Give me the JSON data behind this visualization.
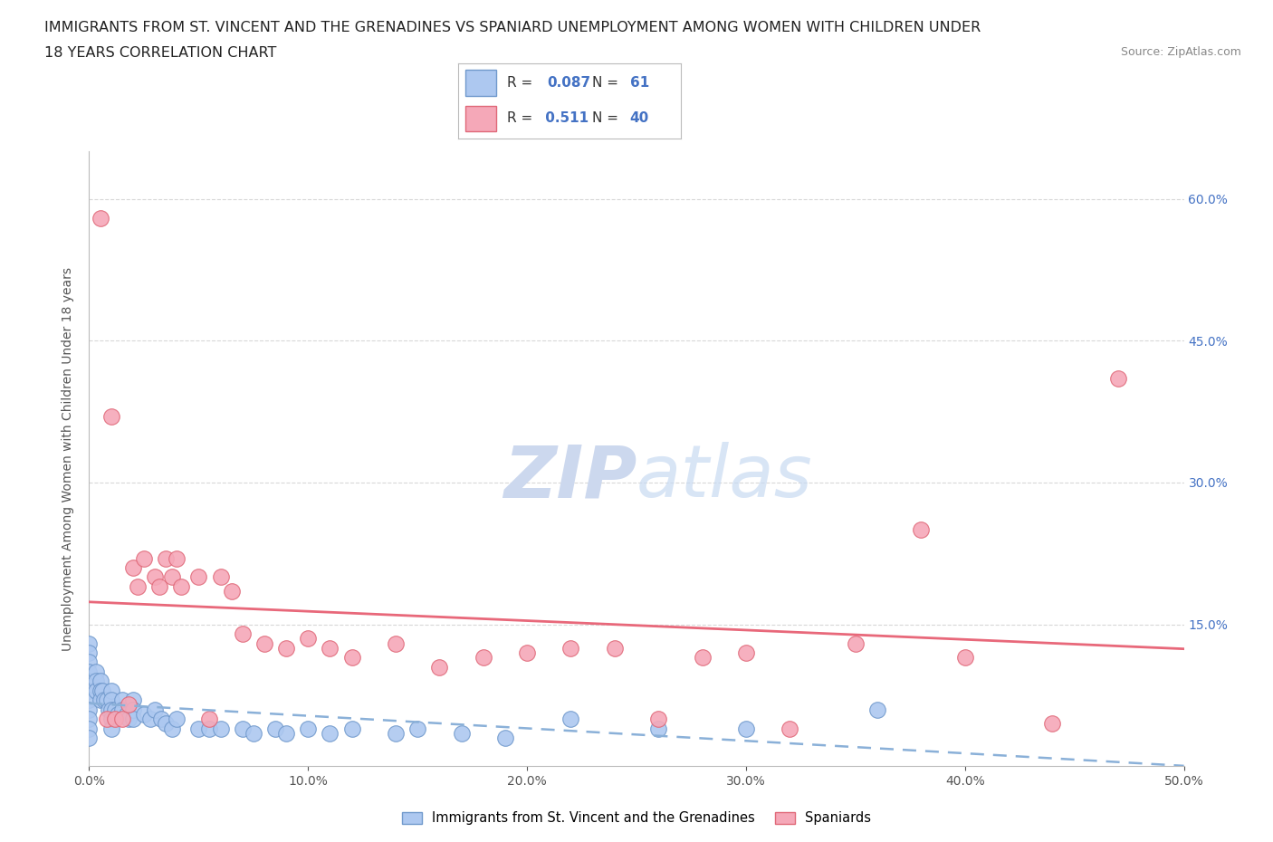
{
  "title_line1": "IMMIGRANTS FROM ST. VINCENT AND THE GRENADINES VS SPANIARD UNEMPLOYMENT AMONG WOMEN WITH CHILDREN UNDER",
  "title_line2": "18 YEARS CORRELATION CHART",
  "source": "Source: ZipAtlas.com",
  "ylabel": "Unemployment Among Women with Children Under 18 years",
  "xlim": [
    0.0,
    0.5
  ],
  "ylim": [
    0.0,
    0.65
  ],
  "xtick_values": [
    0.0,
    0.1,
    0.2,
    0.3,
    0.4,
    0.5
  ],
  "ytick_values": [
    0.15,
    0.3,
    0.45,
    0.6
  ],
  "legend1_label": "Immigrants from St. Vincent and the Grenadines",
  "legend2_label": "Spaniards",
  "R1": 0.087,
  "N1": 61,
  "R2": 0.511,
  "N2": 40,
  "color_blue": "#adc8f0",
  "color_pink": "#f5a8b8",
  "color_blue_border": "#7099cc",
  "color_pink_border": "#e06878",
  "color_blue_line": "#8ab0d8",
  "color_pink_line": "#e8687a",
  "color_blue_text": "#4472c4",
  "watermark_color": "#ccd8ee",
  "background_color": "#ffffff",
  "grid_color": "#d8d8d8",
  "blue_scatter_x": [
    0.0,
    0.0,
    0.0,
    0.0,
    0.0,
    0.0,
    0.0,
    0.0,
    0.0,
    0.0,
    0.0,
    0.0,
    0.003,
    0.003,
    0.003,
    0.005,
    0.005,
    0.005,
    0.006,
    0.007,
    0.008,
    0.009,
    0.01,
    0.01,
    0.01,
    0.01,
    0.01,
    0.012,
    0.013,
    0.015,
    0.015,
    0.017,
    0.018,
    0.02,
    0.02,
    0.02,
    0.025,
    0.028,
    0.03,
    0.033,
    0.035,
    0.038,
    0.04,
    0.05,
    0.055,
    0.06,
    0.07,
    0.075,
    0.085,
    0.09,
    0.1,
    0.11,
    0.12,
    0.14,
    0.15,
    0.17,
    0.19,
    0.22,
    0.26,
    0.3,
    0.36
  ],
  "blue_scatter_y": [
    0.13,
    0.12,
    0.11,
    0.1,
    0.09,
    0.085,
    0.08,
    0.07,
    0.06,
    0.05,
    0.04,
    0.03,
    0.1,
    0.09,
    0.08,
    0.09,
    0.08,
    0.07,
    0.08,
    0.07,
    0.07,
    0.06,
    0.08,
    0.07,
    0.06,
    0.05,
    0.04,
    0.06,
    0.055,
    0.07,
    0.06,
    0.055,
    0.05,
    0.07,
    0.06,
    0.05,
    0.055,
    0.05,
    0.06,
    0.05,
    0.045,
    0.04,
    0.05,
    0.04,
    0.04,
    0.04,
    0.04,
    0.035,
    0.04,
    0.035,
    0.04,
    0.035,
    0.04,
    0.035,
    0.04,
    0.035,
    0.03,
    0.05,
    0.04,
    0.04,
    0.06
  ],
  "pink_scatter_x": [
    0.005,
    0.008,
    0.01,
    0.012,
    0.015,
    0.018,
    0.02,
    0.022,
    0.025,
    0.03,
    0.032,
    0.035,
    0.038,
    0.04,
    0.042,
    0.05,
    0.055,
    0.06,
    0.065,
    0.07,
    0.08,
    0.09,
    0.1,
    0.11,
    0.12,
    0.14,
    0.16,
    0.18,
    0.2,
    0.22,
    0.24,
    0.26,
    0.28,
    0.3,
    0.32,
    0.35,
    0.38,
    0.4,
    0.44,
    0.47
  ],
  "pink_scatter_y": [
    0.58,
    0.05,
    0.37,
    0.05,
    0.05,
    0.065,
    0.21,
    0.19,
    0.22,
    0.2,
    0.19,
    0.22,
    0.2,
    0.22,
    0.19,
    0.2,
    0.05,
    0.2,
    0.185,
    0.14,
    0.13,
    0.125,
    0.135,
    0.125,
    0.115,
    0.13,
    0.105,
    0.115,
    0.12,
    0.125,
    0.125,
    0.05,
    0.115,
    0.12,
    0.04,
    0.13,
    0.25,
    0.115,
    0.045,
    0.41
  ]
}
